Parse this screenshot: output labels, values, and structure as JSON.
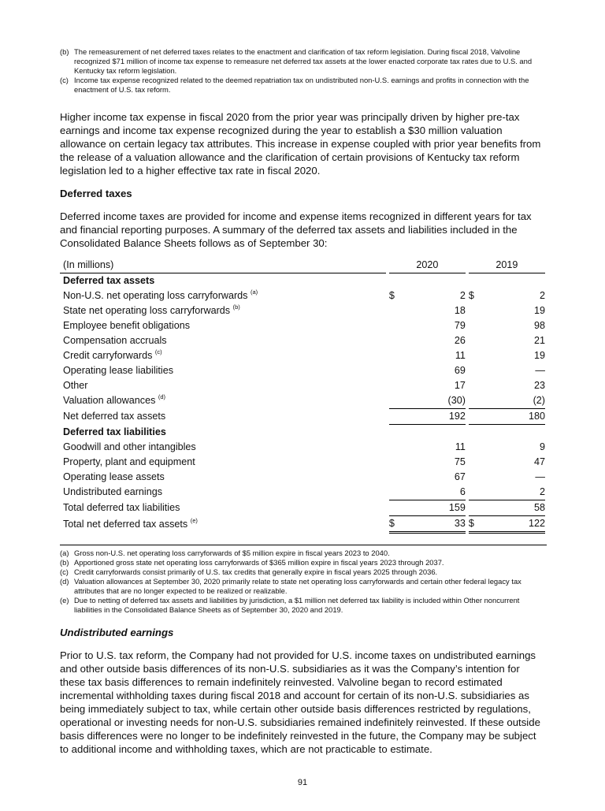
{
  "top_footnotes": [
    {
      "key": "(b)",
      "text": "The remeasurement of net deferred taxes relates to the enactment and clarification of tax reform legislation. During fiscal 2018, Valvoline recognized $71 million of income tax expense to remeasure net deferred tax assets at the lower enacted corporate tax rates due to U.S. and Kentucky tax reform legislation."
    },
    {
      "key": "(c)",
      "text": "Income tax expense recognized related to the deemed repatriation tax on undistributed non-U.S. earnings and profits in connection with the enactment of U.S. tax reform."
    }
  ],
  "para1": "Higher income tax expense in fiscal 2020 from the prior year was principally driven by higher pre-tax earnings and income tax expense recognized during the year to establish a $30 million valuation allowance on certain legacy tax attributes. This increase in expense coupled with prior year benefits from the release of a valuation allowance and the clarification of certain provisions of Kentucky tax reform legislation led to a higher effective tax rate in fiscal 2020.",
  "heading_deferred": "Deferred taxes",
  "para2": "Deferred income taxes are provided for income and expense items recognized in different years for tax and financial reporting purposes. A summary of the deferred tax assets and liabilities included in the Consolidated Balance Sheets follows as of September 30:",
  "table": {
    "unit": "(In millions)",
    "col1": "2020",
    "col2": "2019",
    "rows": [
      {
        "label": "Deferred tax assets",
        "bold": true
      },
      {
        "label": "Non-U.S. net operating loss carryforwards",
        "sup": "(a)",
        "cur": "$",
        "v1": "2",
        "v2": "2"
      },
      {
        "label": "State net operating loss carryforwards",
        "sup": "(b)",
        "v1": "18",
        "v2": "19"
      },
      {
        "label": "Employee benefit obligations",
        "v1": "79",
        "v2": "98"
      },
      {
        "label": "Compensation accruals",
        "v1": "26",
        "v2": "21"
      },
      {
        "label": "Credit carryforwards",
        "sup": "(c)",
        "v1": "11",
        "v2": "19"
      },
      {
        "label": "Operating lease liabilities",
        "v1": "69",
        "v2": "—"
      },
      {
        "label": "Other",
        "v1": "17",
        "v2": "23"
      },
      {
        "label": "Valuation allowances",
        "sup": "(d)",
        "v1": "(30)",
        "v2": "(2)",
        "line": "ul"
      },
      {
        "label": "Net deferred tax assets",
        "v1": "192",
        "v2": "180",
        "line": "ul"
      },
      {
        "label": "Deferred tax liabilities",
        "bold": true
      },
      {
        "label": "Goodwill and other intangibles",
        "v1": "11",
        "v2": "9"
      },
      {
        "label": "Property, plant and equipment",
        "v1": "75",
        "v2": "47"
      },
      {
        "label": "Operating lease assets",
        "v1": "67",
        "v2": "—"
      },
      {
        "label": "Undistributed earnings",
        "v1": "6",
        "v2": "2",
        "line": "ul"
      },
      {
        "label": "Total deferred tax liabilities",
        "v1": "159",
        "v2": "58",
        "line": "ul"
      },
      {
        "label": "Total net deferred tax assets",
        "sup": "(e)",
        "cur": "$",
        "v1": "33",
        "v2": "122",
        "line": "dul"
      }
    ]
  },
  "table_footnotes": [
    {
      "key": "(a)",
      "text": "Gross non-U.S. net operating loss carryforwards of $5 million expire in fiscal years 2023 to 2040."
    },
    {
      "key": "(b)",
      "text": "Apportioned gross state net operating loss carryforwards of $365 million expire in fiscal years 2023 through 2037."
    },
    {
      "key": "(c)",
      "text": "Credit carryforwards consist primarily of U.S. tax credits that generally expire in fiscal years 2025 through 2036."
    },
    {
      "key": "(d)",
      "text": "Valuation allowances at September 30, 2020 primarily relate to state net operating loss carryforwards and certain other federal legacy tax attributes that are no longer expected to be realized or realizable."
    },
    {
      "key": "(e)",
      "text": "Due to netting of deferred tax assets and liabilities by jurisdiction, a $1 million net deferred tax liability is included within Other noncurrent liabilities in the Consolidated Balance Sheets as of September 30, 2020 and 2019."
    }
  ],
  "heading_undistributed": "Undistributed earnings",
  "para3": "Prior to U.S. tax reform, the Company had not provided for U.S. income taxes on undistributed earnings and other outside basis differences of its non-U.S. subsidiaries as it was the Company’s intention for these tax basis differences to remain indefinitely reinvested. Valvoline began to record estimated incremental withholding taxes during fiscal 2018 and account for certain of its non-U.S. subsidiaries as being immediately subject to tax, while certain other outside basis differences restricted by regulations, operational or investing needs for non-U.S. subsidiaries remained indefinitely reinvested. If these outside basis differences were no longer to be indefinitely reinvested in the future, the Company may be subject to additional income and withholding taxes, which are not practicable to estimate.",
  "page_number": "91"
}
